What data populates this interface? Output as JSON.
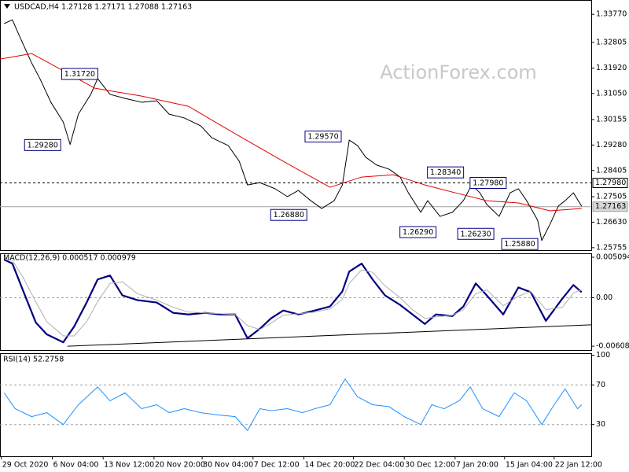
{
  "chart_data": [
    {
      "type": "line",
      "title": "USDCAD,H4  1.27128 1.27171 1.27088 1.27163",
      "watermark": "ActionForex.com",
      "xlim": [
        0,
        430
      ],
      "ylim": [
        1.2567,
        1.3426
      ],
      "yticks": [
        {
          "value": 1.3377,
          "label": "1.33770"
        },
        {
          "value": 1.32805,
          "label": "1.32805"
        },
        {
          "value": 1.3192,
          "label": "1.31920"
        },
        {
          "value": 1.3105,
          "label": "1.31050"
        },
        {
          "value": 1.30155,
          "label": "1.30155"
        },
        {
          "value": 1.2928,
          "label": "1.29280"
        },
        {
          "value": 1.28405,
          "label": "1.28405"
        },
        {
          "value": 1.27505,
          "label": "1.27505"
        },
        {
          "value": 1.2663,
          "label": "1.26630"
        },
        {
          "value": 1.25755,
          "label": "1.25755"
        }
      ],
      "hlines": [
        {
          "value": 1.2798,
          "label": "1.27980",
          "style": "dashed",
          "color": "#000000"
        },
        {
          "value": 1.27163,
          "label": "1.27163",
          "style": "solid",
          "color": "#a0a0a0"
        }
      ],
      "series": [
        {
          "name": "USDCAD",
          "color": "#000000",
          "x": [
            3,
            9,
            14,
            23,
            29,
            37,
            46,
            51,
            57,
            66,
            71,
            80,
            91,
            103,
            114,
            123,
            134,
            146,
            154,
            166,
            174,
            180,
            189,
            200,
            209,
            217,
            226,
            234,
            243,
            249,
            254,
            260,
            266,
            274,
            283,
            291,
            297,
            306,
            311,
            320,
            329,
            337,
            343,
            349,
            354,
            363,
            371,
            377,
            383,
            391,
            394,
            400,
            406,
            411,
            417,
            423
          ],
          "values": [
            1.3345,
            1.3358,
            1.3304,
            1.321,
            1.3156,
            1.3075,
            1.3007,
            1.293,
            1.3034,
            1.3102,
            1.3156,
            1.3102,
            1.3088,
            1.3075,
            1.308,
            1.3034,
            1.3021,
            1.2994,
            1.2953,
            1.2926,
            1.2872,
            1.2791,
            1.2799,
            1.2778,
            1.2751,
            1.2772,
            1.2737,
            1.271,
            1.2737,
            1.2791,
            1.2945,
            1.2926,
            1.2886,
            1.2859,
            1.2845,
            1.2818,
            1.2764,
            1.2697,
            1.2737,
            1.2683,
            1.2697,
            1.2737,
            1.2791,
            1.2764,
            1.2724,
            1.2683,
            1.2764,
            1.2778,
            1.2737,
            1.267,
            1.26,
            1.2656,
            1.2718,
            1.2737,
            1.2764,
            1.2718
          ]
        },
        {
          "name": "MA",
          "color": "#e00000",
          "x": [
            0,
            23,
            46,
            69,
            103,
            137,
            171,
            206,
            240,
            263,
            286,
            309,
            331,
            354,
            377,
            400,
            423
          ],
          "values": [
            1.3223,
            1.3242,
            1.3183,
            1.3123,
            1.3096,
            1.3061,
            1.2967,
            1.2872,
            1.2783,
            1.2818,
            1.2826,
            1.2791,
            1.2764,
            1.2737,
            1.2729,
            1.2702,
            1.271
          ]
        }
      ],
      "annotations": [
        {
          "label": "1.31720",
          "value": 1.3172,
          "x": 58
        },
        {
          "label": "1.29280",
          "value": 1.2928,
          "x": 31
        },
        {
          "label": "1.29570",
          "value": 1.2957,
          "x": 235
        },
        {
          "label": "1.26880",
          "value": 1.2688,
          "x": 210
        },
        {
          "label": "1.26290",
          "value": 1.2629,
          "x": 304
        },
        {
          "label": "1.28340",
          "value": 1.2834,
          "x": 324
        },
        {
          "label": "1.27980",
          "value": 1.2798,
          "x": 355
        },
        {
          "label": "1.26230",
          "value": 1.2623,
          "x": 346
        },
        {
          "label": "1.25880",
          "value": 1.2588,
          "x": 378
        }
      ]
    },
    {
      "type": "line",
      "title": "MACD(12,26,9) 0.000517 0.000979",
      "xlim": [
        0,
        430
      ],
      "ylim": [
        -0.00658,
        0.00559
      ],
      "yticks": [
        0.005094,
        {
          "value": 0,
          "label": "0.00"
        },
        -0.006089
      ],
      "levels": [
        0
      ],
      "series": [
        {
          "name": "MACD",
          "color": "#000080",
          "width": 2.2,
          "x": [
            3,
            9,
            17,
            26,
            34,
            46,
            54,
            63,
            71,
            80,
            89,
            100,
            114,
            126,
            137,
            149,
            160,
            171,
            180,
            189,
            197,
            206,
            217,
            229,
            240,
            249,
            254,
            263,
            271,
            280,
            291,
            300,
            309,
            317,
            329,
            337,
            346,
            354,
            366,
            377,
            386,
            397,
            409,
            417,
            423
          ],
          "values": [
            0.0048,
            0.0043,
            0.0008,
            -0.0031,
            -0.0046,
            -0.0056,
            -0.0036,
            -0.0006,
            0.0023,
            0.0028,
            0.0003,
            -0.0003,
            -0.0006,
            -0.0019,
            -0.0021,
            -0.0019,
            -0.0021,
            -0.0021,
            -0.0051,
            -0.0039,
            -0.0026,
            -0.0016,
            -0.0021,
            -0.0016,
            -0.0011,
            0.0008,
            0.0033,
            0.0043,
            0.0023,
            0.0003,
            -0.0009,
            -0.0021,
            -0.0033,
            -0.0021,
            -0.0023,
            -0.0011,
            0.0018,
            0.0003,
            -0.0021,
            0.0013,
            0.0007,
            -0.0029,
            -0.0001,
            0.0016,
            0.0007
          ]
        },
        {
          "name": "Signal",
          "color": "#b0b0b0",
          "width": 1,
          "x": [
            3,
            9,
            17,
            26,
            34,
            46,
            54,
            63,
            71,
            80,
            89,
            100,
            114,
            126,
            137,
            149,
            160,
            171,
            180,
            189,
            197,
            206,
            217,
            229,
            240,
            249,
            254,
            263,
            271,
            280,
            291,
            300,
            309,
            317,
            329,
            337,
            346,
            354,
            366,
            377,
            386,
            397,
            409,
            417,
            423
          ],
          "values": [
            0.005,
            0.0047,
            0.0025,
            -0.0005,
            -0.003,
            -0.0048,
            -0.0048,
            -0.003,
            -0.0005,
            0.0018,
            0.002,
            0.0005,
            -0.0003,
            -0.0012,
            -0.0018,
            -0.0019,
            -0.002,
            -0.0021,
            -0.0035,
            -0.004,
            -0.0032,
            -0.0022,
            -0.002,
            -0.0018,
            -0.0014,
            -0.0002,
            0.0018,
            0.0035,
            0.0032,
            0.0015,
            0.0,
            -0.0015,
            -0.0026,
            -0.0024,
            -0.0022,
            -0.0015,
            0.0005,
            0.001,
            -0.001,
            0.0002,
            0.0008,
            -0.0015,
            -0.0012,
            0.0006,
            0.001
          ]
        }
      ],
      "trendline": {
        "x": [
          49,
          430
        ],
        "values": [
          -0.0061,
          -0.0034
        ],
        "color": "#000000"
      }
    },
    {
      "type": "line",
      "title": "RSI(14) 52.2758",
      "xlim": [
        0,
        430
      ],
      "ylim": [
        -2,
        102
      ],
      "yticks": [
        100,
        70,
        30
      ],
      "levels": [
        70,
        30
      ],
      "xticks": [
        {
          "value": 1,
          "label": "29 Oct 2020"
        },
        {
          "value": 38,
          "label": "6 Nov 04:00"
        },
        {
          "value": 75,
          "label": "13 Nov 12:00"
        },
        {
          "value": 112,
          "label": "20 Nov 20:00"
        },
        {
          "value": 147,
          "label": "30 Nov 04:00"
        },
        {
          "value": 184,
          "label": "7 Dec 12:00"
        },
        {
          "value": 221,
          "label": "14 Dec 20:00"
        },
        {
          "value": 257,
          "label": "22 Dec 04:00"
        },
        {
          "value": 294,
          "label": "30 Dec 12:00"
        },
        {
          "value": 331,
          "label": "7 Jan 20:00"
        },
        {
          "value": 367,
          "label": "15 Jan 04:00"
        },
        {
          "value": 403,
          "label": "22 Jan 12:00"
        }
      ],
      "series": [
        {
          "name": "RSI",
          "color": "#1e90ff",
          "width": 1,
          "x": [
            3,
            11,
            23,
            34,
            46,
            57,
            71,
            80,
            91,
            103,
            114,
            123,
            134,
            146,
            157,
            171,
            180,
            189,
            197,
            209,
            220,
            229,
            240,
            251,
            260,
            271,
            283,
            294,
            306,
            314,
            323,
            334,
            342,
            351,
            363,
            374,
            383,
            394,
            403,
            411,
            420,
            423
          ],
          "values": [
            62,
            46,
            38,
            42,
            30,
            50,
            68,
            54,
            62,
            46,
            50,
            42,
            46,
            42,
            40,
            38,
            24,
            46,
            44,
            46,
            42,
            46,
            50,
            76,
            58,
            50,
            48,
            38,
            30,
            50,
            46,
            54,
            68,
            46,
            38,
            62,
            54,
            30,
            50,
            66,
            46,
            50
          ]
        }
      ]
    }
  ]
}
